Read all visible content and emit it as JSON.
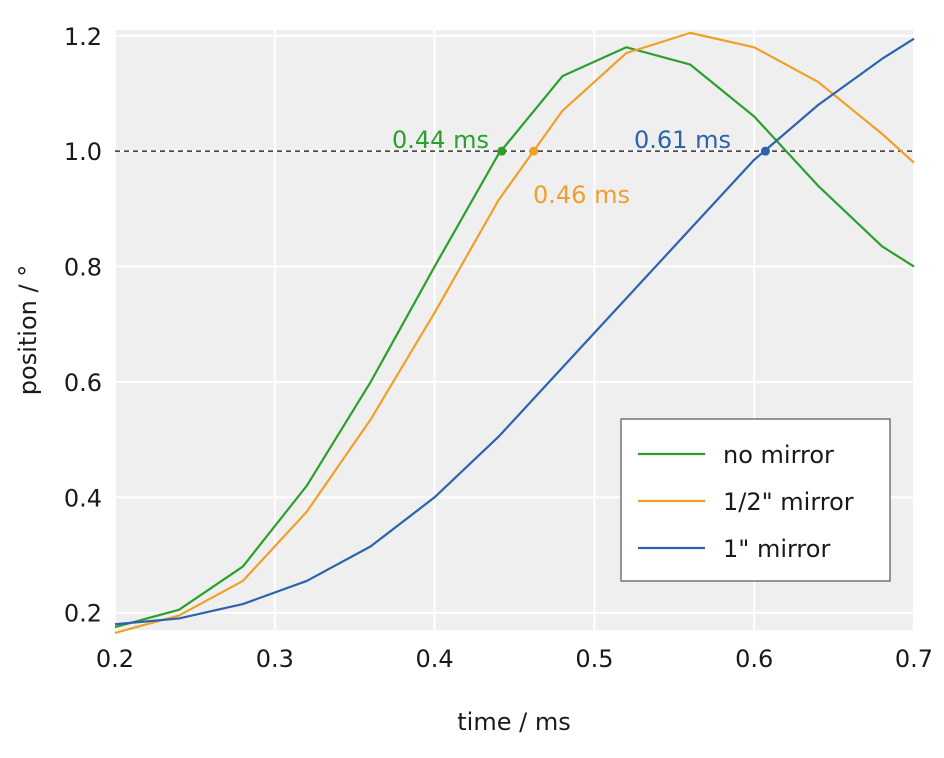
{
  "chart_data": {
    "type": "line",
    "xlabel": "time / ms",
    "ylabel": "position / °",
    "xlim": [
      0.2,
      0.7
    ],
    "ylim": [
      0.17,
      1.21
    ],
    "xticks": [
      "0.2",
      "0.3",
      "0.4",
      "0.5",
      "0.6",
      "0.7"
    ],
    "yticks": [
      "0.2",
      "0.4",
      "0.6",
      "0.8",
      "1.0",
      "1.2"
    ],
    "grid": true,
    "background": "#efefef",
    "reference_line": {
      "y": 1.0,
      "style": "dashed",
      "color": "#333333"
    },
    "legend_position": "bottom-right",
    "series": [
      {
        "name": "no mirror",
        "color": "#2ca02c",
        "x": [
          0.2,
          0.22,
          0.24,
          0.28,
          0.32,
          0.36,
          0.4,
          0.44,
          0.48,
          0.52,
          0.56,
          0.6,
          0.64,
          0.68,
          0.7
        ],
        "y": [
          0.175,
          0.19,
          0.205,
          0.28,
          0.42,
          0.6,
          0.8,
          0.995,
          1.13,
          1.18,
          1.15,
          1.06,
          0.94,
          0.835,
          0.8
        ]
      },
      {
        "name": "1/2\" mirror",
        "color": "#f0a028",
        "x": [
          0.2,
          0.22,
          0.24,
          0.28,
          0.32,
          0.36,
          0.4,
          0.44,
          0.48,
          0.52,
          0.56,
          0.6,
          0.64,
          0.68,
          0.7
        ],
        "y": [
          0.165,
          0.18,
          0.195,
          0.255,
          0.375,
          0.535,
          0.72,
          0.915,
          1.07,
          1.17,
          1.205,
          1.18,
          1.12,
          1.03,
          0.98
        ]
      },
      {
        "name": "1\" mirror",
        "color": "#2b63ad",
        "x": [
          0.2,
          0.22,
          0.24,
          0.28,
          0.32,
          0.36,
          0.4,
          0.44,
          0.48,
          0.52,
          0.56,
          0.6,
          0.64,
          0.68,
          0.7
        ],
        "y": [
          0.18,
          0.185,
          0.19,
          0.215,
          0.255,
          0.315,
          0.4,
          0.505,
          0.625,
          0.745,
          0.865,
          0.985,
          1.08,
          1.16,
          1.195
        ]
      }
    ],
    "annotations": [
      {
        "text": "0.44 ms",
        "x": 0.442,
        "y": 1.0,
        "color": "#2ca02c"
      },
      {
        "text": "0.46 ms",
        "x": 0.462,
        "y": 1.0,
        "color": "#f0a028"
      },
      {
        "text": "0.61 ms",
        "x": 0.607,
        "y": 1.0,
        "color": "#2b63ad"
      }
    ]
  }
}
